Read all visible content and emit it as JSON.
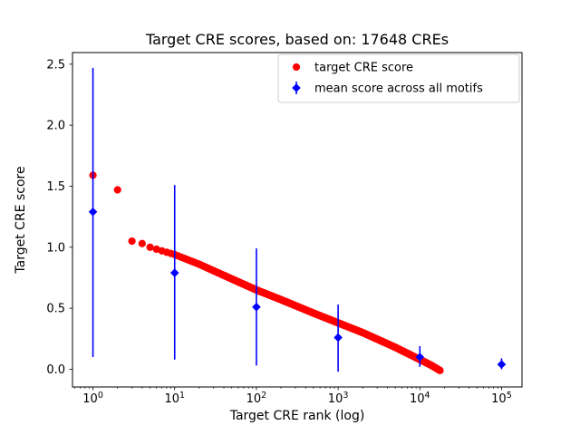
{
  "figure_title": "Target CRE scores, based on: 17648 CREs",
  "axes": {
    "xlabel": "Target CRE rank (log)",
    "ylabel": "Target CRE score",
    "x_ticks": [
      {
        "base": "10",
        "exp": "0"
      },
      {
        "base": "10",
        "exp": "1"
      },
      {
        "base": "10",
        "exp": "2"
      },
      {
        "base": "10",
        "exp": "3"
      },
      {
        "base": "10",
        "exp": "4"
      },
      {
        "base": "10",
        "exp": "5"
      }
    ],
    "y_tick_labels": [
      "0.0",
      "0.5",
      "1.0",
      "1.5",
      "2.0",
      "2.5"
    ]
  },
  "legend": {
    "items": [
      {
        "label": "target CRE score",
        "marker": "circle",
        "color": "#ff0000"
      },
      {
        "label": "mean score across all motifs",
        "marker": "diamond",
        "color": "#0000ff"
      }
    ]
  },
  "chart_data": {
    "type": "scatter",
    "title": "Target CRE scores, based on: 17648 CREs",
    "xlabel": "Target CRE rank (log)",
    "ylabel": "Target CRE score",
    "x_scale": "log",
    "xlim": [
      0.562,
      177828
    ],
    "ylim": [
      -0.145,
      2.595
    ],
    "x_tick_exponents": [
      0,
      1,
      2,
      3,
      4,
      5
    ],
    "y_ticks": [
      0.0,
      0.5,
      1.0,
      1.5,
      2.0,
      2.5
    ],
    "grid": false,
    "legend_position": "upper right inside axes",
    "legend_entries": [
      "target CRE score",
      "mean score across all motifs"
    ],
    "n_points_total": 17648,
    "series": [
      {
        "name": "target CRE score",
        "type": "dense-scatter",
        "marker": "circle",
        "color": "#ff0000",
        "note": "17648 ranked points forming a dense decreasing band; anchor points [rank, score] estimated from plot",
        "anchor_points": [
          [
            1,
            1.59
          ],
          [
            2,
            1.47
          ],
          [
            3,
            1.05
          ],
          [
            4,
            1.03
          ],
          [
            5,
            1.0
          ],
          [
            7,
            0.97
          ],
          [
            10,
            0.94
          ],
          [
            20,
            0.86
          ],
          [
            50,
            0.74
          ],
          [
            100,
            0.65
          ],
          [
            200,
            0.57
          ],
          [
            500,
            0.46
          ],
          [
            1000,
            0.38
          ],
          [
            2000,
            0.3
          ],
          [
            5000,
            0.18
          ],
          [
            10000,
            0.08
          ],
          [
            14000,
            0.03
          ],
          [
            17648,
            -0.01
          ]
        ]
      },
      {
        "name": "mean score across all motifs",
        "type": "errorbar",
        "marker": "diamond",
        "color": "#0000ff",
        "points": [
          {
            "x": 1,
            "y": 1.29,
            "y_lo": 0.1,
            "y_hi": 2.47
          },
          {
            "x": 10,
            "y": 0.79,
            "y_lo": 0.08,
            "y_hi": 1.51
          },
          {
            "x": 100,
            "y": 0.51,
            "y_lo": 0.03,
            "y_hi": 0.99
          },
          {
            "x": 1000,
            "y": 0.26,
            "y_lo": -0.02,
            "y_hi": 0.53
          },
          {
            "x": 10000,
            "y": 0.1,
            "y_lo": 0.02,
            "y_hi": 0.19
          },
          {
            "x": 100000,
            "y": 0.04,
            "y_lo": 0.0,
            "y_hi": 0.09
          }
        ]
      }
    ]
  }
}
